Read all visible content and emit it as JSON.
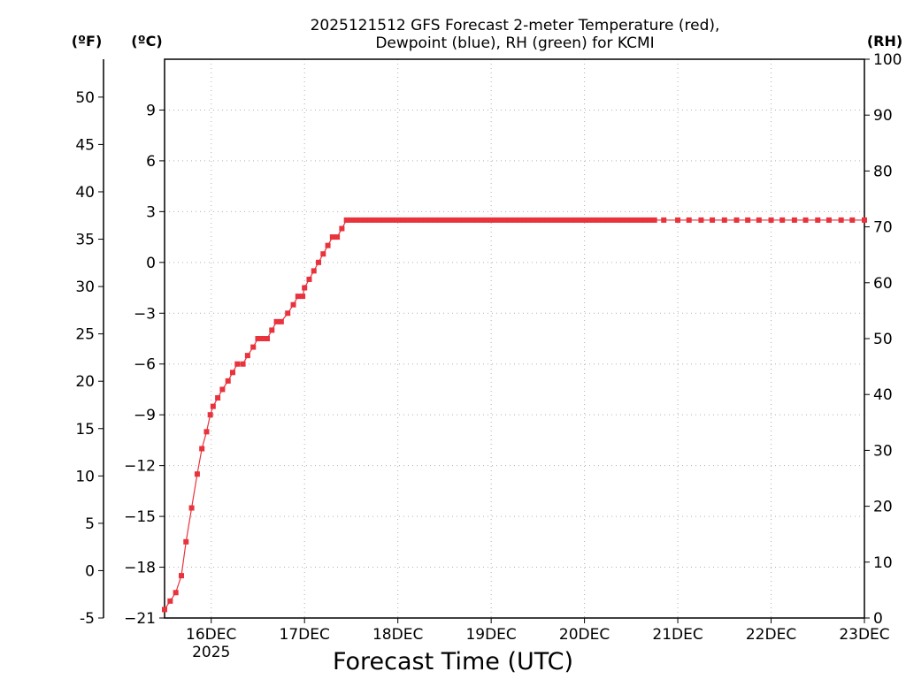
{
  "chart_data": {
    "type": "line",
    "title_line1": "2025121512 GFS Forecast 2-meter Temperature (red),",
    "title_line2": "Dewpoint (blue), RH (green) for KCMI",
    "xlabel": "Forecast Time (UTC)",
    "x_units": "days since 2025-12-16 00Z",
    "xlim": [
      -0.5,
      7
    ],
    "x_ticks": [
      {
        "x": 0,
        "label": "16DEC",
        "sub": "2025"
      },
      {
        "x": 1,
        "label": "17DEC",
        "sub": ""
      },
      {
        "x": 2,
        "label": "18DEC",
        "sub": ""
      },
      {
        "x": 3,
        "label": "19DEC",
        "sub": ""
      },
      {
        "x": 4,
        "label": "20DEC",
        "sub": ""
      },
      {
        "x": 5,
        "label": "21DEC",
        "sub": ""
      },
      {
        "x": 6,
        "label": "22DEC",
        "sub": ""
      },
      {
        "x": 7,
        "label": "23DEC",
        "sub": ""
      }
    ],
    "y_f": {
      "unit": "(ºF)",
      "range": [
        -5,
        54
      ],
      "ticks": [
        -5,
        0,
        5,
        10,
        15,
        20,
        25,
        30,
        35,
        40,
        45,
        50
      ]
    },
    "y_c": {
      "unit": "(ºC)",
      "range": [
        -21,
        12
      ],
      "ticks": [
        -21,
        -18,
        -15,
        -12,
        -9,
        -6,
        -3,
        0,
        3,
        6,
        9
      ]
    },
    "y_rh": {
      "unit": "(RH)",
      "range": [
        0,
        100
      ],
      "ticks": [
        0,
        10,
        20,
        30,
        40,
        50,
        60,
        70,
        80,
        90,
        100
      ]
    },
    "series": [
      {
        "name": "Temperature (°C)",
        "axis": "c",
        "color": "#e8323c",
        "marker": "filled-square",
        "x": [
          -0.5,
          -0.44,
          -0.38,
          -0.32,
          -0.27,
          -0.21,
          -0.15,
          -0.1,
          -0.05,
          -0.01,
          0.02,
          0.07,
          0.12,
          0.18,
          0.23,
          0.28,
          0.34,
          0.39,
          0.45,
          0.5,
          0.55,
          0.6,
          0.65,
          0.7,
          0.75,
          0.82,
          0.88,
          0.93,
          0.98,
          1.0,
          1.05,
          1.1,
          1.15,
          1.2,
          1.25,
          1.3,
          1.35,
          1.4,
          1.45,
          1.5,
          1.55,
          1.6,
          1.65,
          1.7,
          1.75,
          1.8,
          1.85,
          1.9,
          1.95,
          2.0,
          2.05,
          2.1,
          2.15,
          2.2,
          2.25,
          2.3,
          2.35,
          2.4,
          2.45,
          2.5,
          2.55,
          2.6,
          2.65,
          2.7,
          2.75,
          2.8,
          2.85,
          2.9,
          2.95,
          3.0,
          3.05,
          3.1,
          3.15,
          3.2,
          3.25,
          3.3,
          3.35,
          3.4,
          3.45,
          3.5,
          3.55,
          3.6,
          3.65,
          3.7,
          3.75,
          3.8,
          3.85,
          3.9,
          3.95,
          4.0,
          4.05,
          4.1,
          4.15,
          4.2,
          4.25,
          4.3,
          4.35,
          4.4,
          4.45,
          4.5,
          4.55,
          4.6,
          4.65,
          4.7,
          4.75,
          4.85,
          5.0,
          5.12,
          5.25,
          5.37,
          5.5,
          5.63,
          5.75,
          5.87,
          6.0,
          6.12,
          6.25,
          6.37,
          6.5,
          6.62,
          6.75,
          6.87,
          7.0
        ],
        "values": [
          -20.5,
          -20.0,
          -19.5,
          -18.5,
          -16.5,
          -14.5,
          -12.5,
          -11.0,
          -10.0,
          -9.0,
          -8.5,
          -8.0,
          -7.5,
          -7.0,
          -6.5,
          -6.0,
          -6.0,
          -5.5,
          -5.0,
          -4.5,
          -4.5,
          -4.5,
          -4.0,
          -3.5,
          -3.5,
          -3.0,
          -2.5,
          -2.0,
          -2.0,
          -1.5,
          -1.0,
          -0.5,
          0.0,
          0.5,
          1.0,
          1.5,
          1.5,
          2.0,
          2.5,
          2.5,
          2.5,
          2.5,
          2.5,
          2.5,
          2.5,
          2.5,
          2.5,
          2.5,
          2.5,
          2.5,
          2.5,
          2.5,
          2.5,
          2.5,
          2.5,
          2.5,
          2.5,
          2.5,
          2.5,
          2.5,
          2.5,
          2.5,
          2.5,
          2.5,
          2.5,
          2.5,
          2.5,
          2.5,
          2.5,
          2.5,
          2.5,
          2.5,
          2.5,
          2.5,
          2.5,
          2.5,
          2.5,
          2.5,
          2.5,
          2.5,
          2.5,
          2.5,
          2.5,
          2.5,
          2.5,
          2.5,
          2.5,
          2.5,
          2.5,
          2.5,
          2.5,
          2.5,
          2.5,
          2.5,
          2.5,
          2.5,
          2.5,
          2.5,
          2.5,
          2.5,
          2.5,
          2.5,
          2.5,
          2.5,
          2.5,
          2.5,
          2.5,
          2.5,
          2.5,
          2.5,
          2.5,
          2.5,
          2.5,
          2.5,
          2.5,
          2.5,
          2.5,
          2.5,
          2.5,
          2.5,
          2.5,
          2.5,
          2.5
        ]
      }
    ]
  }
}
